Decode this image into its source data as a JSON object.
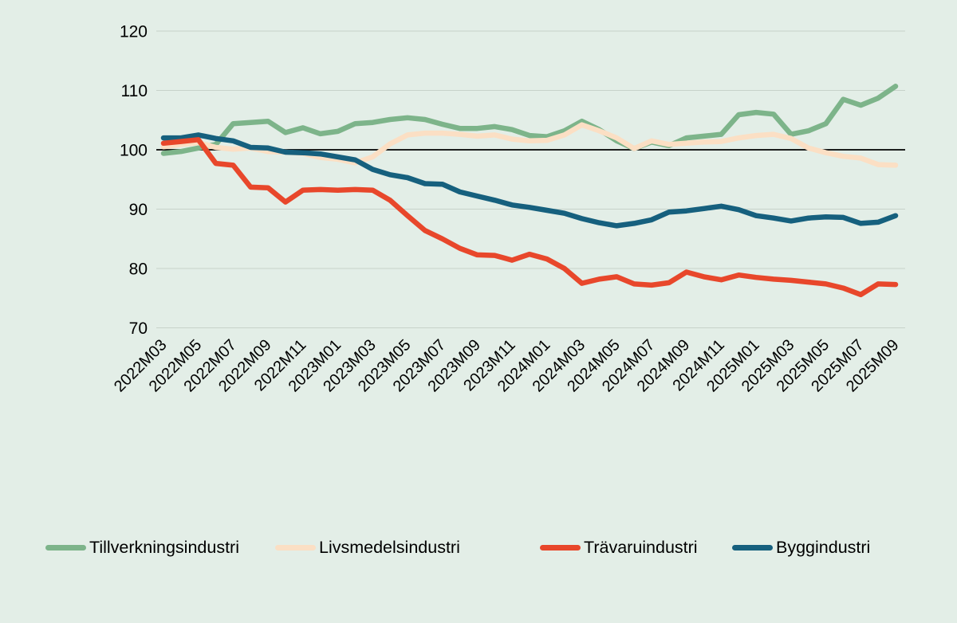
{
  "chart_data": {
    "type": "line",
    "title": "",
    "xlabel": "",
    "ylabel": "",
    "ylim": [
      70,
      120
    ],
    "y_ticks": [
      70,
      80,
      90,
      100,
      110,
      120
    ],
    "reference_line": 100,
    "grid": "horizontal",
    "legend_position": "bottom",
    "background_color": "#e3eee7",
    "gridline_color": "#c7d2ca",
    "reference_line_color": "#000000",
    "axis_text_color": "#000000",
    "x_label_every": 2,
    "x": [
      "2022M03",
      "2022M04",
      "2022M05",
      "2022M06",
      "2022M07",
      "2022M08",
      "2022M09",
      "2022M10",
      "2022M11",
      "2022M12",
      "2023M01",
      "2023M02",
      "2023M03",
      "2023M04",
      "2023M05",
      "2023M06",
      "2023M07",
      "2023M08",
      "2023M09",
      "2023M10",
      "2023M11",
      "2023M12",
      "2024M01",
      "2024M02",
      "2024M03",
      "2024M04",
      "2024M05",
      "2024M06",
      "2024M07",
      "2024M08",
      "2024M09",
      "2024M10",
      "2024M11",
      "2024M12",
      "2025M01",
      "2025M02",
      "2025M03",
      "2025M04",
      "2025M05",
      "2025M06",
      "2025M07",
      "2025M08",
      "2025M09"
    ],
    "series": [
      {
        "name": "Tillverkningsindustri",
        "color": "#7db48a",
        "values": [
          99.4,
          99.7,
          100.3,
          100.9,
          104.4,
          104.6,
          104.8,
          102.9,
          103.7,
          102.7,
          103.1,
          104.4,
          104.6,
          105.1,
          105.4,
          105.1,
          104.3,
          103.6,
          103.6,
          103.9,
          103.4,
          102.4,
          102.2,
          103.2,
          104.8,
          103.4,
          101.5,
          100.2,
          101.3,
          100.7,
          102.0,
          102.3,
          102.6,
          105.9,
          106.3,
          106.0,
          102.6,
          103.2,
          104.4,
          108.5,
          107.5,
          108.7,
          110.7
        ]
      },
      {
        "name": "Livsmedelsindustri",
        "color": "#fbdfc4",
        "values": [
          100.5,
          100.9,
          101.2,
          100.4,
          100.1,
          100.3,
          99.7,
          99.6,
          99.4,
          98.7,
          98.4,
          97.8,
          98.8,
          101.0,
          102.5,
          102.8,
          102.8,
          102.6,
          102.3,
          102.5,
          101.8,
          101.5,
          101.6,
          102.5,
          104.2,
          103.2,
          102.0,
          100.2,
          101.5,
          100.9,
          101.1,
          101.3,
          101.4,
          102.0,
          102.4,
          102.6,
          101.9,
          100.3,
          99.5,
          98.9,
          98.6,
          97.5,
          97.4
        ]
      },
      {
        "name": "Trävaruindustri",
        "color": "#e8472b",
        "values": [
          101.1,
          101.4,
          101.7,
          97.7,
          97.4,
          93.7,
          93.6,
          91.2,
          93.2,
          93.3,
          93.2,
          93.3,
          93.2,
          91.5,
          88.9,
          86.4,
          85.0,
          83.4,
          82.3,
          82.2,
          81.4,
          82.4,
          81.6,
          80.0,
          77.5,
          78.2,
          78.6,
          77.4,
          77.2,
          77.6,
          79.4,
          78.6,
          78.1,
          78.9,
          78.5,
          78.2,
          78.0,
          77.7,
          77.4,
          76.7,
          75.6,
          77.4,
          77.3
        ]
      },
      {
        "name": "Byggindustri",
        "color": "#16607e",
        "values": [
          102.0,
          102.0,
          102.5,
          101.9,
          101.5,
          100.4,
          100.3,
          99.6,
          99.5,
          99.3,
          98.8,
          98.3,
          96.7,
          95.8,
          95.3,
          94.3,
          94.2,
          92.9,
          92.2,
          91.5,
          90.7,
          90.3,
          89.8,
          89.3,
          88.4,
          87.7,
          87.2,
          87.6,
          88.2,
          89.5,
          89.7,
          90.1,
          90.5,
          89.9,
          88.9,
          88.5,
          88.0,
          88.5,
          88.7,
          88.6,
          87.6,
          87.8,
          88.9
        ]
      }
    ]
  },
  "legend": {
    "items": [
      {
        "label": "Tillverkningsindustri"
      },
      {
        "label": "Livsmedelsindustri"
      },
      {
        "label": "Trävaruindustri"
      },
      {
        "label": "Byggindustri"
      }
    ]
  }
}
